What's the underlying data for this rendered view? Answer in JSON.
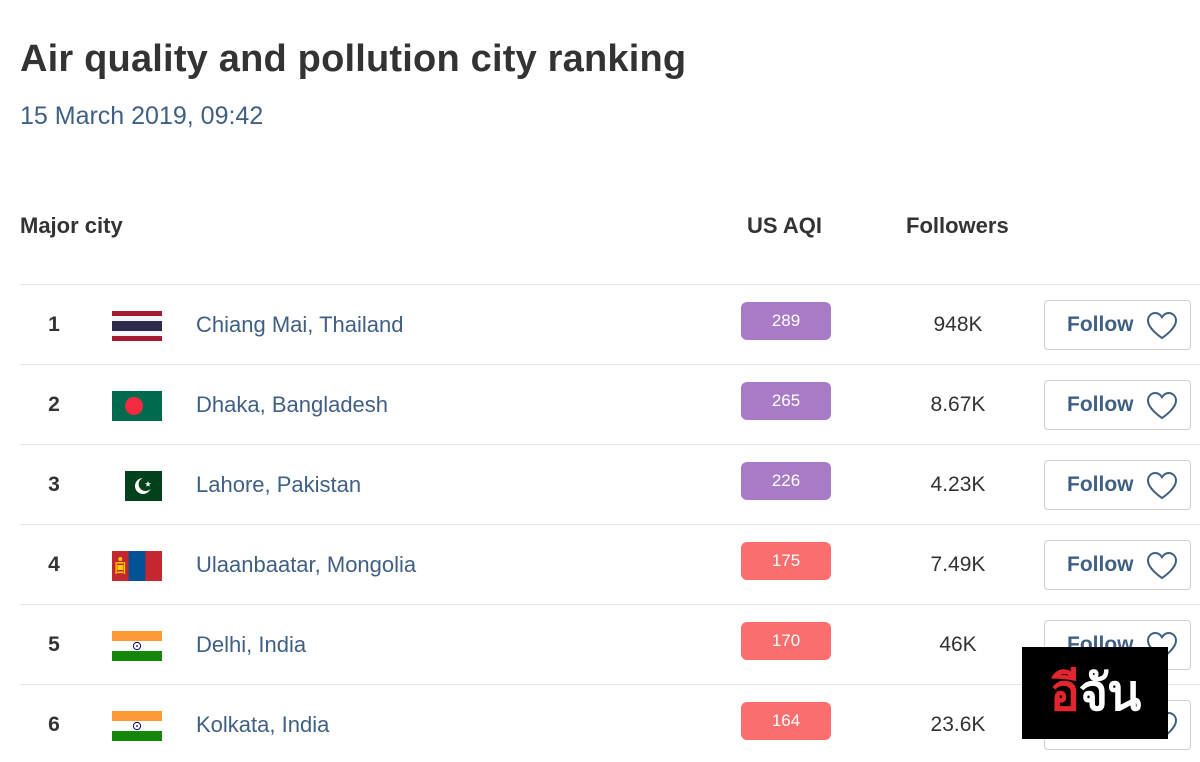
{
  "page": {
    "title": "Air quality and pollution city ranking",
    "datetime": "15 March 2019, 09:42"
  },
  "table": {
    "headers": {
      "city": "Major city",
      "aqi": "US AQI",
      "followers": "Followers"
    },
    "follow_label": "Follow",
    "rows": [
      {
        "rank": "1",
        "flag": "thailand-flag-icon",
        "city": "Chiang Mai, Thailand",
        "aqi": "289",
        "aqi_color": "#a87bc7",
        "followers": "948K"
      },
      {
        "rank": "2",
        "flag": "bangladesh-flag-icon",
        "city": "Dhaka, Bangladesh",
        "aqi": "265",
        "aqi_color": "#a87bc7",
        "followers": "8.67K"
      },
      {
        "rank": "3",
        "flag": "pakistan-flag-icon",
        "city": "Lahore, Pakistan",
        "aqi": "226",
        "aqi_color": "#a87bc7",
        "followers": "4.23K"
      },
      {
        "rank": "4",
        "flag": "mongolia-flag-icon",
        "city": "Ulaanbaatar, Mongolia",
        "aqi": "175",
        "aqi_color": "#fb6e6e",
        "followers": "7.49K"
      },
      {
        "rank": "5",
        "flag": "india-flag-icon",
        "city": "Delhi, India",
        "aqi": "170",
        "aqi_color": "#fb6e6e",
        "followers": "46K"
      },
      {
        "rank": "6",
        "flag": "india-flag-icon",
        "city": "Kolkata, India",
        "aqi": "164",
        "aqi_color": "#fb6e6e",
        "followers": "23.6K"
      }
    ]
  },
  "watermark": {
    "part1": "อี",
    "part2": "จัน"
  }
}
